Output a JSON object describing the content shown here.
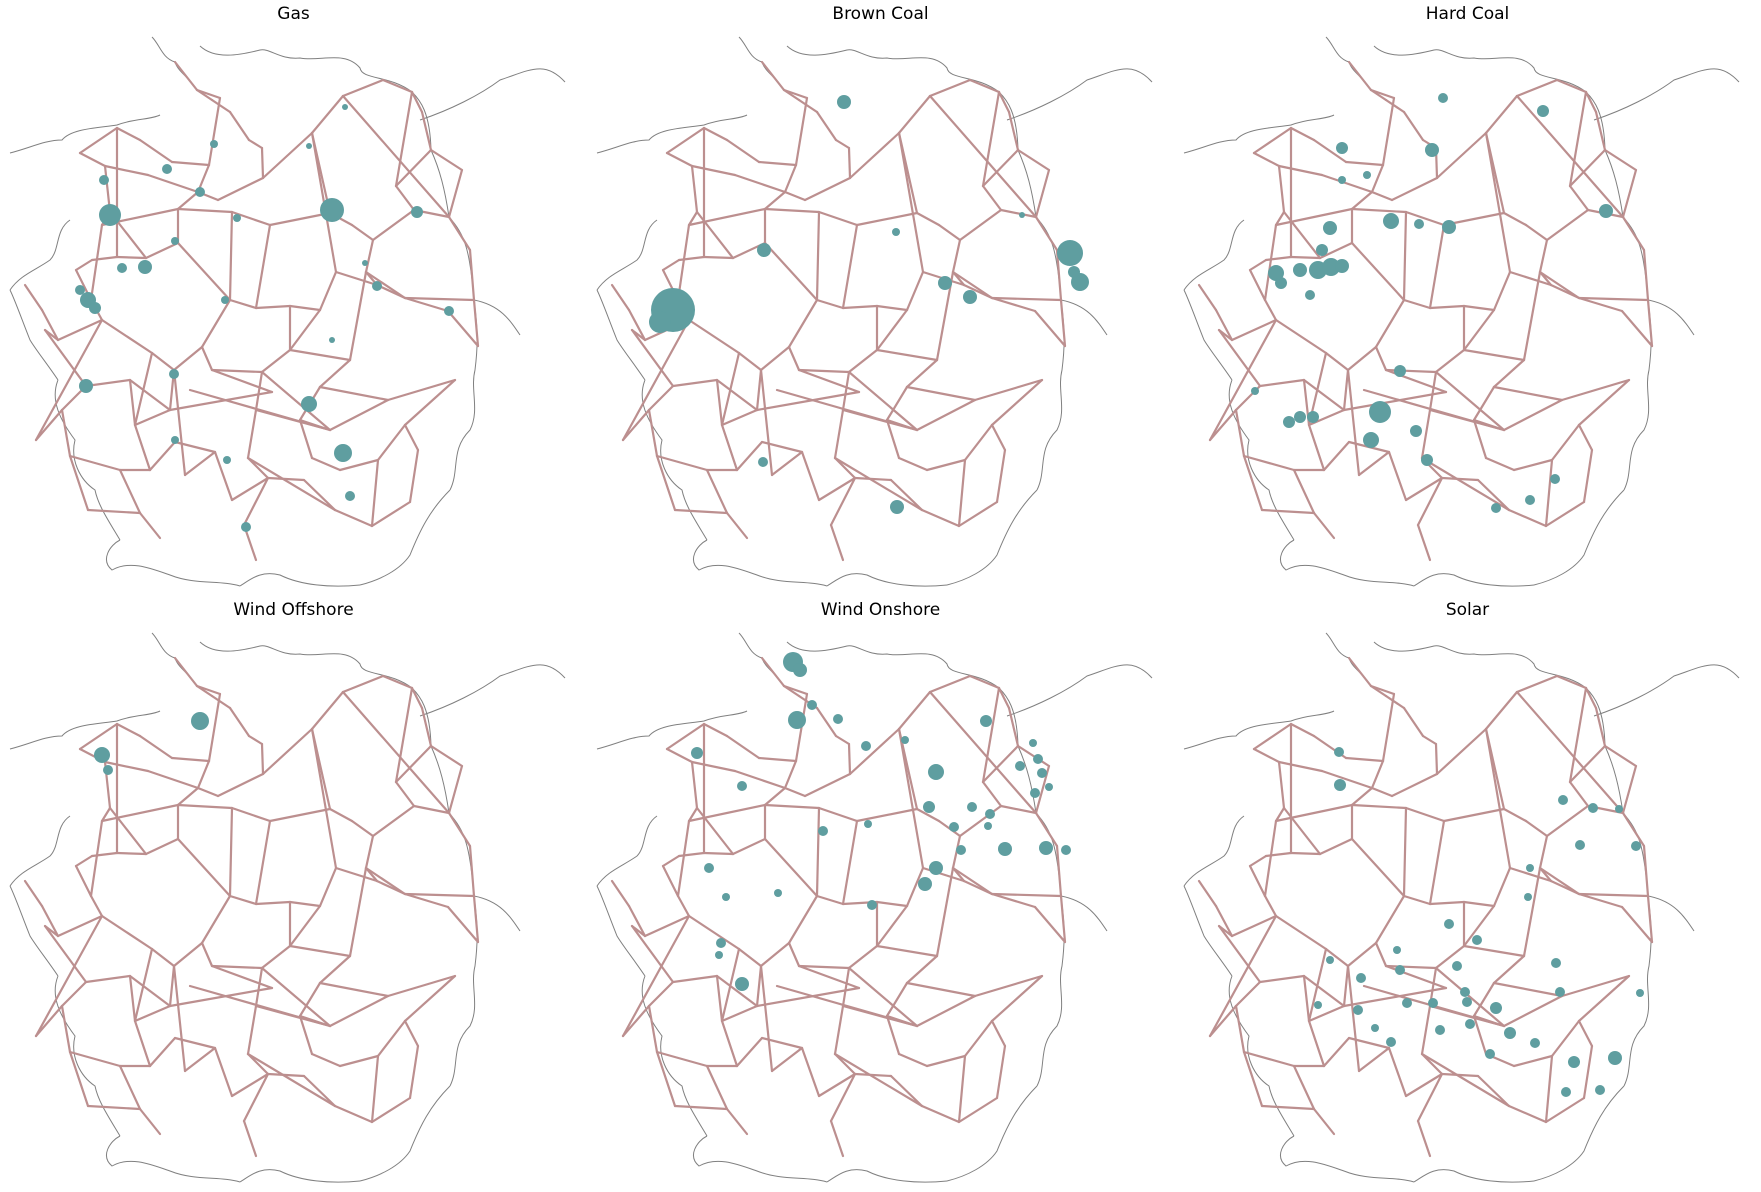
{
  "figure": {
    "colors": {
      "network_line": "#bc8f8f",
      "plant_marker": "#5f9ea0",
      "coastline": "#808080"
    }
  },
  "panels": [
    {
      "title": "Gas",
      "plants": [
        [
          110,
          215,
          11
        ],
        [
          332,
          210,
          12
        ],
        [
          145,
          267,
          7
        ],
        [
          343,
          453,
          9
        ],
        [
          309,
          404,
          8
        ],
        [
          86,
          386,
          7
        ],
        [
          88,
          300,
          8
        ],
        [
          95,
          308,
          6
        ],
        [
          246,
          527,
          5
        ],
        [
          350,
          496,
          5
        ],
        [
          417,
          212,
          6
        ],
        [
          377,
          286,
          5
        ],
        [
          449,
          311,
          5
        ],
        [
          200,
          192,
          5
        ],
        [
          167,
          169,
          5
        ],
        [
          104,
          180,
          5
        ],
        [
          174,
          374,
          5
        ],
        [
          225,
          300,
          4
        ],
        [
          227,
          460,
          4
        ],
        [
          175,
          440,
          4
        ],
        [
          237,
          218,
          4
        ],
        [
          122,
          268,
          5
        ],
        [
          80,
          290,
          5
        ],
        [
          345,
          107,
          3
        ],
        [
          214,
          144,
          4
        ],
        [
          309,
          146,
          3
        ],
        [
          365,
          263,
          3
        ],
        [
          175,
          241,
          4
        ],
        [
          332,
          340,
          3
        ]
      ]
    },
    {
      "title": "Brown Coal",
      "plants": [
        [
          673,
          310,
          22
        ],
        [
          660,
          322,
          11
        ],
        [
          1070,
          253,
          13
        ],
        [
          1080,
          282,
          9
        ],
        [
          1074,
          272,
          6
        ],
        [
          844,
          102,
          7
        ],
        [
          764,
          250,
          7
        ],
        [
          945,
          283,
          7
        ],
        [
          970,
          297,
          7
        ],
        [
          897,
          507,
          7
        ],
        [
          763,
          462,
          5
        ],
        [
          896,
          232,
          4
        ],
        [
          1022,
          215,
          3
        ]
      ]
    },
    {
      "title": "Hard Coal",
      "plants": [
        [
          1342,
          148,
          6
        ],
        [
          1443,
          98,
          5
        ],
        [
          1543,
          111,
          6
        ],
        [
          1606,
          211,
          7
        ],
        [
          1391,
          221,
          8
        ],
        [
          1432,
          150,
          7
        ],
        [
          1449,
          227,
          7
        ],
        [
          1419,
          224,
          5
        ],
        [
          1330,
          228,
          7
        ],
        [
          1322,
          250,
          6
        ],
        [
          1276,
          273,
          8
        ],
        [
          1300,
          270,
          7
        ],
        [
          1318,
          270,
          9
        ],
        [
          1331,
          267,
          9
        ],
        [
          1342,
          266,
          7
        ],
        [
          1281,
          283,
          6
        ],
        [
          1310,
          295,
          5
        ],
        [
          1380,
          412,
          11
        ],
        [
          1371,
          440,
          8
        ],
        [
          1416,
          431,
          6
        ],
        [
          1289,
          422,
          6
        ],
        [
          1300,
          417,
          6
        ],
        [
          1313,
          417,
          6
        ],
        [
          1427,
          460,
          6
        ],
        [
          1400,
          371,
          6
        ],
        [
          1555,
          479,
          5
        ],
        [
          1530,
          500,
          5
        ],
        [
          1496,
          508,
          5
        ],
        [
          1255,
          391,
          4
        ],
        [
          1342,
          180,
          4
        ],
        [
          1367,
          175,
          4
        ]
      ]
    },
    {
      "title": "Wind Offshore",
      "plants": [
        [
          200,
          721,
          9
        ],
        [
          102,
          755,
          8
        ],
        [
          108,
          770,
          5
        ]
      ]
    },
    {
      "title": "Wind Onshore",
      "plants": [
        [
          793,
          662,
          10
        ],
        [
          800,
          670,
          7
        ],
        [
          797,
          720,
          9
        ],
        [
          936,
          772,
          8
        ],
        [
          929,
          807,
          6
        ],
        [
          1046,
          848,
          7
        ],
        [
          936,
          868,
          7
        ],
        [
          1005,
          849,
          7
        ],
        [
          697,
          753,
          6
        ],
        [
          742,
          984,
          7
        ],
        [
          925,
          884,
          7
        ],
        [
          838,
          719,
          5
        ],
        [
          986,
          721,
          6
        ],
        [
          709,
          868,
          5
        ],
        [
          742,
          786,
          5
        ],
        [
          823,
          831,
          5
        ],
        [
          868,
          824,
          4
        ],
        [
          954,
          827,
          5
        ],
        [
          990,
          814,
          5
        ],
        [
          1035,
          793,
          5
        ],
        [
          1020,
          766,
          5
        ],
        [
          1042,
          773,
          5
        ],
        [
          872,
          905,
          5
        ],
        [
          721,
          943,
          5
        ],
        [
          719,
          955,
          4
        ],
        [
          1066,
          850,
          5
        ],
        [
          961,
          850,
          5
        ],
        [
          866,
          746,
          5
        ],
        [
          905,
          740,
          4
        ],
        [
          972,
          807,
          5
        ],
        [
          988,
          826,
          4
        ],
        [
          1033,
          743,
          4
        ],
        [
          1038,
          759,
          5
        ],
        [
          1049,
          787,
          4
        ],
        [
          812,
          705,
          5
        ],
        [
          726,
          897,
          4
        ],
        [
          778,
          893,
          4
        ]
      ]
    },
    {
      "title": "Solar",
      "plants": [
        [
          1615,
          1058,
          7
        ],
        [
          1574,
          1062,
          6
        ],
        [
          1496,
          1008,
          6
        ],
        [
          1566,
          1092,
          5
        ],
        [
          1600,
          1090,
          5
        ],
        [
          1510,
          1033,
          6
        ],
        [
          1490,
          1054,
          5
        ],
        [
          1470,
          1024,
          5
        ],
        [
          1440,
          1030,
          5
        ],
        [
          1407,
          1003,
          5
        ],
        [
          1391,
          1042,
          5
        ],
        [
          1358,
          1010,
          5
        ],
        [
          1467,
          1002,
          5
        ],
        [
          1560,
          992,
          5
        ],
        [
          1535,
          1043,
          5
        ],
        [
          1640,
          993,
          4
        ],
        [
          1636,
          846,
          5
        ],
        [
          1580,
          845,
          5
        ],
        [
          1340,
          785,
          6
        ],
        [
          1563,
          800,
          5
        ],
        [
          1593,
          808,
          5
        ],
        [
          1619,
          809,
          4
        ],
        [
          1457,
          966,
          5
        ],
        [
          1339,
          752,
          5
        ],
        [
          1556,
          963,
          5
        ],
        [
          1530,
          868,
          4
        ],
        [
          1528,
          897,
          4
        ],
        [
          1465,
          992,
          5
        ],
        [
          1433,
          1003,
          5
        ],
        [
          1400,
          970,
          5
        ],
        [
          1449,
          924,
          5
        ],
        [
          1477,
          940,
          5
        ],
        [
          1397,
          950,
          4
        ],
        [
          1361,
          978,
          5
        ],
        [
          1375,
          1028,
          4
        ],
        [
          1330,
          960,
          4
        ],
        [
          1318,
          1005,
          4
        ]
      ]
    }
  ]
}
